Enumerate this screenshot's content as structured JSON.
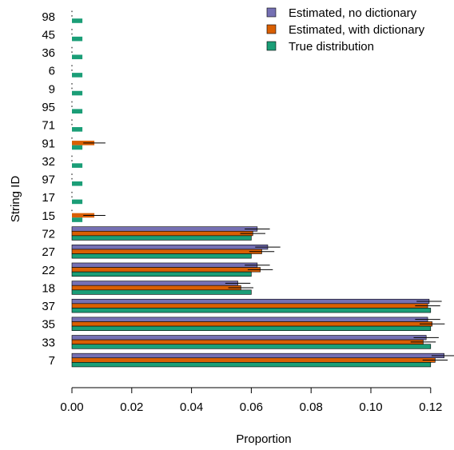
{
  "chart_data": {
    "type": "bar",
    "orientation": "horizontal",
    "xlabel": "Proportion",
    "ylabel": "String ID",
    "xlim": [
      0,
      0.125
    ],
    "xticks": [
      "0.00",
      "0.02",
      "0.04",
      "0.06",
      "0.08",
      "0.10",
      "0.12"
    ],
    "xtick_values": [
      0,
      0.02,
      0.04,
      0.06,
      0.08,
      0.1,
      0.12
    ],
    "grid": false,
    "legend_position": "top-right",
    "categories": [
      "98",
      "45",
      "36",
      "6",
      "9",
      "95",
      "71",
      "91",
      "32",
      "97",
      "17",
      "15",
      "72",
      "27",
      "22",
      "18",
      "37",
      "35",
      "33",
      "7"
    ],
    "series": [
      {
        "name": "Estimated, no dictionary",
        "color": "#7570b3",
        "values": [
          0,
          0,
          0,
          0,
          0,
          0,
          0,
          0,
          0,
          0,
          0,
          0,
          0.062,
          0.0655,
          0.062,
          0.0555,
          0.1195,
          0.119,
          0.1185,
          0.1245
        ],
        "errors": [
          0,
          0,
          0,
          0,
          0,
          0,
          0,
          0,
          0,
          0,
          0,
          0,
          0.0042,
          0.0042,
          0.0042,
          0.0042,
          0.0042,
          0.0042,
          0.0042,
          0.0042
        ]
      },
      {
        "name": "Estimated, with dictionary",
        "color": "#d95f02",
        "values": [
          0,
          0,
          0,
          0,
          0,
          0,
          0,
          0.0075,
          0,
          0,
          0,
          0.0075,
          0.0605,
          0.0635,
          0.063,
          0.0565,
          0.119,
          0.1205,
          0.1175,
          0.1215
        ],
        "errors": [
          0,
          0,
          0,
          0,
          0,
          0,
          0,
          0.0037,
          0,
          0,
          0,
          0.0037,
          0.0042,
          0.0042,
          0.0042,
          0.0042,
          0.0042,
          0.0042,
          0.0042,
          0.0042
        ]
      },
      {
        "name": "True distribution",
        "color": "#1b9e77",
        "values": [
          0.0035,
          0.0035,
          0.0035,
          0.0035,
          0.0035,
          0.0035,
          0.0035,
          0.0035,
          0.0035,
          0.0035,
          0.0035,
          0.0035,
          0.06,
          0.06,
          0.06,
          0.06,
          0.12,
          0.12,
          0.12,
          0.12
        ]
      }
    ]
  }
}
